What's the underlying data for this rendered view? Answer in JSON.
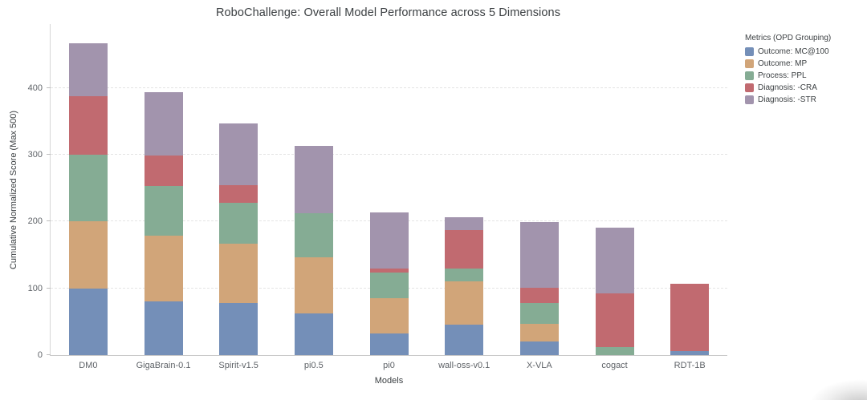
{
  "title": "RoboChallenge: Overall Model Performance across 5 Dimensions",
  "axes": {
    "xlabel": "Models",
    "ylabel": "Cumulative Normalized Score (Max 500)",
    "yticks": [
      0,
      100,
      200,
      300,
      400
    ]
  },
  "legend": {
    "title": "Metrics (OPD Grouping)"
  },
  "chart_data": {
    "type": "bar",
    "stacked": true,
    "title": "RoboChallenge: Overall Model Performance across 5 Dimensions",
    "xlabel": "Models",
    "ylabel": "Cumulative Normalized Score (Max 500)",
    "ylim": [
      0,
      500
    ],
    "grid": "horizontal-dashed",
    "legend_position": "top-right",
    "categories": [
      "DM0",
      "GigaBrain-0.1",
      "Spirit-v1.5",
      "pi0.5",
      "pi0",
      "wall-oss-v0.1",
      "X-VLA",
      "cogact",
      "RDT-1B"
    ],
    "series": [
      {
        "name": "Outcome: MC@100",
        "color": "#748fb8",
        "values": [
          100,
          80,
          78,
          62,
          33,
          46,
          20,
          0,
          6
        ]
      },
      {
        "name": "Outcome: MP",
        "color": "#d1a579",
        "values": [
          100,
          99,
          89,
          85,
          52,
          65,
          27,
          0,
          0
        ]
      },
      {
        "name": "Process: PPL",
        "color": "#85ac94",
        "values": [
          100,
          75,
          61,
          66,
          39,
          19,
          31,
          12,
          0
        ]
      },
      {
        "name": "Diagnosis: -CRA",
        "color": "#c16a70",
        "values": [
          88,
          45,
          27,
          0,
          6,
          58,
          23,
          81,
          101
        ]
      },
      {
        "name": "Diagnosis: -STR",
        "color": "#a294ad",
        "values": [
          79,
          95,
          92,
          100,
          84,
          19,
          99,
          98,
          0
        ]
      }
    ],
    "totals": [
      467,
      394,
      347,
      313,
      214,
      207,
      200,
      191,
      107
    ]
  }
}
